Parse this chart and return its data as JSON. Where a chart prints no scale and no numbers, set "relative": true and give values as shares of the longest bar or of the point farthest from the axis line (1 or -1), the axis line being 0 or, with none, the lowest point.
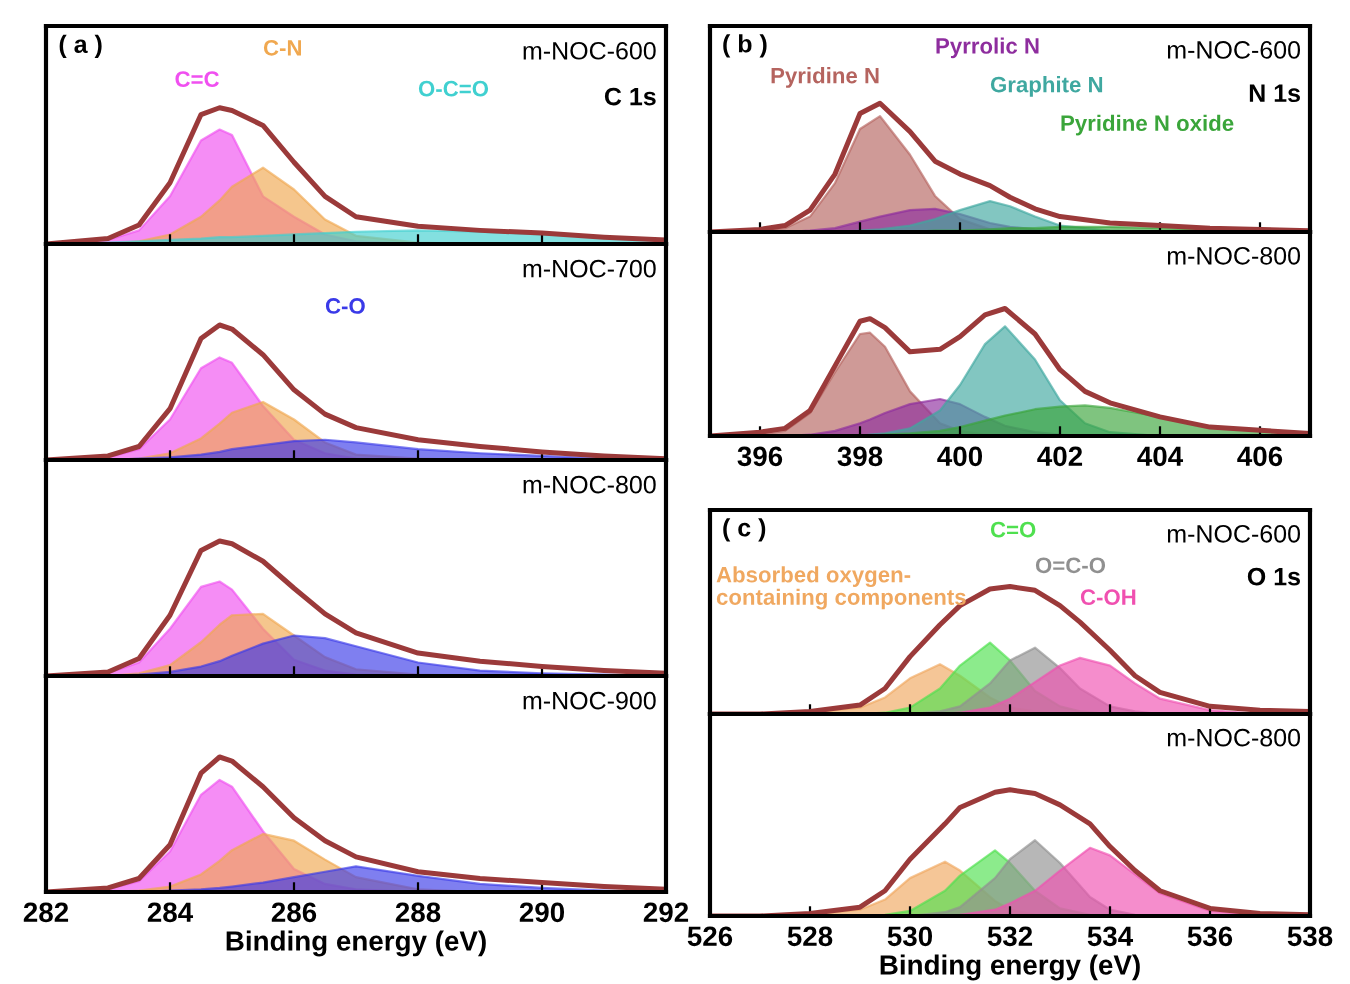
{
  "chart_data": [
    {
      "type": "area",
      "relative": true,
      "title": "m-NOC-600",
      "subtitle": "C 1s",
      "annotations": [
        "( a )"
      ],
      "xlim": [
        282,
        292
      ],
      "xticks": [
        282,
        284,
        286,
        288,
        290,
        292
      ],
      "tick_labels": false,
      "x": [
        282,
        283,
        283.5,
        284,
        284.5,
        284.8,
        285,
        285.5,
        286,
        286.5,
        287,
        288,
        289,
        290,
        291,
        292
      ],
      "series": [
        {
          "name": "C=C",
          "color": "#f050f0",
          "values": [
            0,
            0.03,
            0.1,
            0.35,
            0.76,
            0.84,
            0.8,
            0.35,
            0.2,
            0.07,
            0.02,
            0,
            0,
            0,
            0,
            0
          ]
        },
        {
          "name": "C-N",
          "color": "#f0a850",
          "values": [
            0,
            0,
            0.02,
            0.07,
            0.2,
            0.32,
            0.42,
            0.56,
            0.4,
            0.18,
            0.06,
            0.01,
            0,
            0,
            0,
            0
          ]
        },
        {
          "name": "O-C=O",
          "color": "#40d0d0",
          "values": [
            0,
            0.01,
            0.02,
            0.03,
            0.04,
            0.05,
            0.05,
            0.06,
            0.07,
            0.08,
            0.09,
            0.1,
            0.09,
            0.07,
            0.05,
            0.03
          ]
        },
        {
          "type": "line",
          "color": "#9b3a3a",
          "values": [
            0,
            0.04,
            0.14,
            0.45,
            0.95,
            1.0,
            0.98,
            0.87,
            0.6,
            0.35,
            0.2,
            0.13,
            0.1,
            0.08,
            0.05,
            0.03
          ]
        }
      ]
    },
    {
      "type": "area",
      "relative": true,
      "title": "m-NOC-700",
      "xlim": [
        282,
        292
      ],
      "xticks": [
        282,
        284,
        286,
        288,
        290,
        292
      ],
      "tick_labels": false,
      "x": [
        282,
        283,
        283.5,
        284,
        284.5,
        284.8,
        285,
        285.5,
        286,
        286.5,
        287,
        288,
        289,
        290,
        291,
        292
      ],
      "series": [
        {
          "color": "#f050f0",
          "values": [
            0,
            0.02,
            0.08,
            0.3,
            0.68,
            0.76,
            0.72,
            0.4,
            0.15,
            0.05,
            0.01,
            0,
            0,
            0,
            0,
            0
          ]
        },
        {
          "color": "#f0a850",
          "values": [
            0,
            0,
            0.01,
            0.05,
            0.16,
            0.27,
            0.35,
            0.43,
            0.3,
            0.13,
            0.04,
            0.01,
            0,
            0,
            0,
            0
          ]
        },
        {
          "name": "C-O",
          "color": "#3a3ae8",
          "values": [
            0,
            0,
            0.01,
            0.02,
            0.04,
            0.06,
            0.08,
            0.11,
            0.14,
            0.15,
            0.13,
            0.08,
            0.05,
            0.03,
            0.01,
            0
          ]
        },
        {
          "type": "line",
          "color": "#9b3a3a",
          "values": [
            0,
            0.03,
            0.1,
            0.38,
            0.9,
            1.0,
            0.97,
            0.78,
            0.52,
            0.34,
            0.24,
            0.15,
            0.1,
            0.06,
            0.03,
            0.01
          ]
        }
      ]
    },
    {
      "type": "area",
      "relative": true,
      "title": "m-NOC-800",
      "xlim": [
        282,
        292
      ],
      "xticks": [
        282,
        284,
        286,
        288,
        290,
        292
      ],
      "tick_labels": false,
      "x": [
        282,
        283,
        283.5,
        284,
        284.5,
        284.8,
        285,
        285.5,
        286,
        286.5,
        287,
        288,
        289,
        290,
        291,
        292
      ],
      "series": [
        {
          "color": "#f050f0",
          "values": [
            0,
            0.02,
            0.1,
            0.35,
            0.66,
            0.7,
            0.64,
            0.35,
            0.12,
            0.04,
            0.01,
            0,
            0,
            0,
            0,
            0
          ]
        },
        {
          "color": "#f0a850",
          "values": [
            0,
            0,
            0.02,
            0.08,
            0.25,
            0.38,
            0.45,
            0.46,
            0.3,
            0.14,
            0.05,
            0.01,
            0,
            0,
            0,
            0
          ]
        },
        {
          "color": "#3a3ae8",
          "values": [
            0,
            0,
            0.01,
            0.03,
            0.07,
            0.11,
            0.15,
            0.24,
            0.3,
            0.28,
            0.22,
            0.1,
            0.04,
            0.02,
            0.01,
            0
          ]
        },
        {
          "type": "line",
          "color": "#9b3a3a",
          "values": [
            0,
            0.03,
            0.13,
            0.45,
            0.93,
            1.0,
            0.98,
            0.85,
            0.65,
            0.46,
            0.32,
            0.17,
            0.11,
            0.07,
            0.04,
            0.02
          ]
        }
      ]
    },
    {
      "type": "area",
      "relative": true,
      "title": "m-NOC-900",
      "xlabel": "Binding energy (eV)",
      "xlim": [
        282,
        292
      ],
      "xticks": [
        282,
        284,
        286,
        288,
        290,
        292
      ],
      "tick_labels": "x",
      "x": [
        282,
        283,
        283.5,
        284,
        284.5,
        284.8,
        285,
        285.5,
        286,
        286.5,
        287,
        288,
        289,
        290,
        291,
        292
      ],
      "series": [
        {
          "color": "#f050f0",
          "values": [
            0,
            0.02,
            0.08,
            0.3,
            0.72,
            0.83,
            0.78,
            0.45,
            0.17,
            0.06,
            0.02,
            0,
            0,
            0,
            0,
            0
          ]
        },
        {
          "color": "#f0a850",
          "values": [
            0,
            0,
            0.01,
            0.04,
            0.13,
            0.23,
            0.31,
            0.43,
            0.38,
            0.24,
            0.11,
            0.02,
            0,
            0,
            0,
            0
          ]
        },
        {
          "color": "#3a3ae8",
          "values": [
            0,
            0,
            0,
            0.01,
            0.02,
            0.03,
            0.04,
            0.07,
            0.11,
            0.15,
            0.19,
            0.12,
            0.06,
            0.03,
            0.01,
            0
          ]
        },
        {
          "type": "line",
          "color": "#9b3a3a",
          "values": [
            0,
            0.03,
            0.1,
            0.35,
            0.88,
            1.0,
            0.97,
            0.78,
            0.55,
            0.38,
            0.26,
            0.15,
            0.1,
            0.07,
            0.04,
            0.02
          ]
        }
      ]
    },
    {
      "type": "area",
      "relative": true,
      "title": "m-NOC-600",
      "subtitle": "N 1s",
      "annotations": [
        "( b )"
      ],
      "xlim": [
        395,
        407
      ],
      "xticks": [
        396,
        398,
        400,
        402,
        404,
        406
      ],
      "tick_labels": false,
      "x": [
        395,
        396,
        396.5,
        397,
        397.5,
        398,
        398.4,
        399,
        399.5,
        400,
        400.6,
        401,
        401.5,
        402,
        403,
        404,
        405,
        407
      ],
      "series": [
        {
          "name": "Pyridine N",
          "color": "#b5645f",
          "values": [
            0,
            0.01,
            0.03,
            0.12,
            0.38,
            0.8,
            0.9,
            0.6,
            0.28,
            0.1,
            0.02,
            0.01,
            0,
            0,
            0,
            0,
            0,
            0
          ]
        },
        {
          "name": "Pyrrolic N",
          "color": "#8e2d9e",
          "values": [
            0,
            0,
            0,
            0.01,
            0.03,
            0.08,
            0.12,
            0.17,
            0.18,
            0.14,
            0.07,
            0.04,
            0.02,
            0.01,
            0,
            0,
            0,
            0
          ]
        },
        {
          "name": "Graphite N",
          "color": "#3fa8a0",
          "values": [
            0,
            0,
            0,
            0,
            0,
            0.01,
            0.02,
            0.05,
            0.1,
            0.17,
            0.24,
            0.2,
            0.12,
            0.05,
            0.01,
            0,
            0,
            0
          ]
        },
        {
          "name": "Pyridine N oxide",
          "color": "#3aa53a",
          "values": [
            0,
            0,
            0,
            0,
            0,
            0,
            0,
            0,
            0.01,
            0.01,
            0.02,
            0.03,
            0.03,
            0.04,
            0.04,
            0.03,
            0.02,
            0
          ]
        },
        {
          "type": "line",
          "color": "#9b3a3a",
          "values": [
            0,
            0.02,
            0.05,
            0.17,
            0.45,
            0.92,
            1.0,
            0.78,
            0.55,
            0.45,
            0.36,
            0.27,
            0.18,
            0.12,
            0.07,
            0.05,
            0.03,
            0.01
          ]
        }
      ]
    },
    {
      "type": "area",
      "relative": true,
      "title": "m-NOC-800",
      "xlim": [
        395,
        407
      ],
      "xticks": [
        396,
        398,
        400,
        402,
        404,
        406
      ],
      "tick_labels": "x",
      "x": [
        395,
        396,
        396.5,
        397,
        397.5,
        398,
        398.2,
        398.5,
        399,
        399.6,
        400,
        400.5,
        400.9,
        401.5,
        402,
        402.5,
        403,
        404,
        405,
        407
      ],
      "series": [
        {
          "color": "#b5645f",
          "values": [
            0,
            0.01,
            0.04,
            0.18,
            0.5,
            0.8,
            0.81,
            0.7,
            0.35,
            0.1,
            0.04,
            0.01,
            0,
            0,
            0,
            0,
            0,
            0,
            0,
            0
          ]
        },
        {
          "color": "#8e2d9e",
          "values": [
            0,
            0,
            0,
            0.01,
            0.04,
            0.1,
            0.13,
            0.18,
            0.25,
            0.29,
            0.25,
            0.15,
            0.08,
            0.03,
            0.01,
            0,
            0,
            0,
            0,
            0
          ]
        },
        {
          "color": "#3fa8a0",
          "values": [
            0,
            0,
            0,
            0,
            0,
            0,
            0.01,
            0.02,
            0.06,
            0.2,
            0.4,
            0.72,
            0.86,
            0.6,
            0.28,
            0.1,
            0.03,
            0,
            0,
            0
          ]
        },
        {
          "color": "#3aa53a",
          "values": [
            0,
            0,
            0,
            0,
            0,
            0,
            0,
            0.01,
            0.02,
            0.04,
            0.07,
            0.12,
            0.16,
            0.21,
            0.23,
            0.24,
            0.22,
            0.15,
            0.07,
            0.01
          ]
        },
        {
          "type": "line",
          "color": "#9b3a3a",
          "values": [
            0,
            0.03,
            0.06,
            0.2,
            0.55,
            0.9,
            0.92,
            0.85,
            0.66,
            0.68,
            0.78,
            0.95,
            1.0,
            0.8,
            0.52,
            0.35,
            0.26,
            0.15,
            0.07,
            0.02
          ]
        }
      ]
    },
    {
      "type": "area",
      "relative": true,
      "title": "m-NOC-600",
      "subtitle": "O 1s",
      "annotations": [
        "( c )"
      ],
      "xlim": [
        526,
        538
      ],
      "xticks": [
        526,
        528,
        530,
        532,
        534,
        536,
        538
      ],
      "tick_labels": false,
      "x": [
        526,
        527,
        528,
        529,
        529.5,
        530,
        530.6,
        531,
        531.6,
        532,
        532.5,
        533,
        533.4,
        534,
        534.5,
        535,
        536,
        537,
        538
      ],
      "series": [
        {
          "name": "Absorbed oxygen-\ncontaining components",
          "color": "#f0a860",
          "values": [
            0,
            0,
            0.01,
            0.05,
            0.13,
            0.28,
            0.39,
            0.3,
            0.13,
            0.05,
            0.02,
            0,
            0,
            0,
            0,
            0,
            0,
            0,
            0
          ]
        },
        {
          "name": "C=O",
          "color": "#4fe04f",
          "values": [
            0,
            0,
            0,
            0,
            0.01,
            0.05,
            0.2,
            0.38,
            0.56,
            0.42,
            0.18,
            0.06,
            0.02,
            0,
            0,
            0,
            0,
            0,
            0
          ]
        },
        {
          "name": "O=C-O",
          "color": "#909090",
          "values": [
            0,
            0,
            0,
            0,
            0,
            0,
            0.02,
            0.06,
            0.24,
            0.42,
            0.52,
            0.36,
            0.2,
            0.06,
            0.02,
            0,
            0,
            0,
            0
          ]
        },
        {
          "name": "C-OH",
          "color": "#f050b0",
          "values": [
            0,
            0,
            0,
            0,
            0,
            0,
            0,
            0.01,
            0.05,
            0.12,
            0.25,
            0.38,
            0.44,
            0.38,
            0.24,
            0.12,
            0.03,
            0,
            0
          ]
        },
        {
          "type": "line",
          "color": "#9b3a3a",
          "values": [
            0,
            0,
            0.02,
            0.07,
            0.2,
            0.45,
            0.7,
            0.85,
            0.98,
            1.0,
            0.97,
            0.85,
            0.72,
            0.5,
            0.3,
            0.17,
            0.06,
            0.03,
            0.02
          ]
        }
      ]
    },
    {
      "type": "area",
      "relative": true,
      "title": "m-NOC-800",
      "xlabel": "Binding energy (eV)",
      "xlim": [
        526,
        538
      ],
      "xticks": [
        526,
        528,
        530,
        532,
        534,
        536,
        538
      ],
      "tick_labels": "x",
      "x": [
        526,
        527,
        528,
        529,
        529.5,
        530,
        530.7,
        531,
        531.7,
        532,
        532.5,
        533,
        533.6,
        534,
        534.5,
        535,
        536,
        537,
        538
      ],
      "series": [
        {
          "color": "#f0a860",
          "values": [
            0,
            0,
            0.01,
            0.05,
            0.13,
            0.3,
            0.43,
            0.36,
            0.12,
            0.05,
            0.01,
            0,
            0,
            0,
            0,
            0,
            0,
            0,
            0
          ]
        },
        {
          "color": "#4fe04f",
          "values": [
            0,
            0,
            0,
            0,
            0.01,
            0.04,
            0.2,
            0.32,
            0.52,
            0.42,
            0.2,
            0.06,
            0.01,
            0,
            0,
            0,
            0,
            0,
            0
          ]
        },
        {
          "color": "#909090",
          "values": [
            0,
            0,
            0,
            0,
            0,
            0,
            0.03,
            0.07,
            0.3,
            0.45,
            0.6,
            0.42,
            0.15,
            0.05,
            0.01,
            0,
            0,
            0,
            0
          ]
        },
        {
          "color": "#f050b0",
          "values": [
            0,
            0,
            0,
            0,
            0,
            0,
            0,
            0.01,
            0.05,
            0.1,
            0.2,
            0.36,
            0.54,
            0.48,
            0.33,
            0.18,
            0.04,
            0.01,
            0
          ]
        },
        {
          "type": "line",
          "color": "#9b3a3a",
          "values": [
            0,
            0,
            0.02,
            0.07,
            0.2,
            0.45,
            0.73,
            0.86,
            0.98,
            1.0,
            0.97,
            0.88,
            0.73,
            0.55,
            0.36,
            0.2,
            0.06,
            0.02,
            0.01
          ]
        }
      ]
    }
  ]
}
